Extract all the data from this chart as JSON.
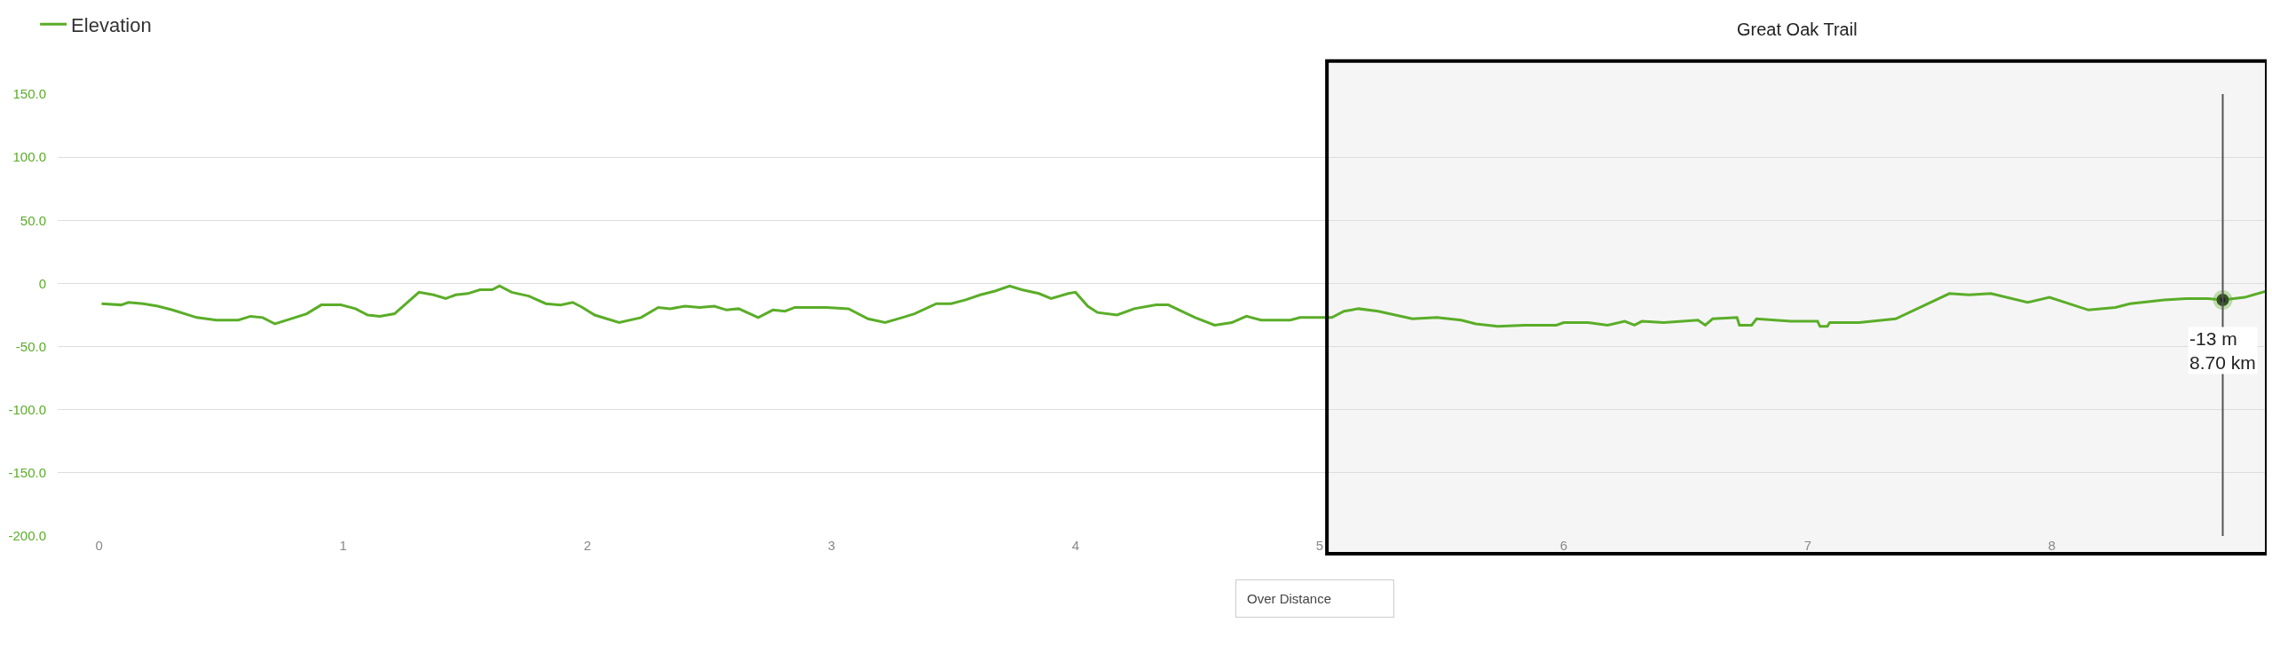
{
  "chart_data": {
    "type": "line",
    "series": [
      {
        "name": "Elevation",
        "color": "#5aad28",
        "x": [
          0.01,
          0.09,
          0.12,
          0.18,
          0.24,
          0.3,
          0.4,
          0.48,
          0.57,
          0.62,
          0.67,
          0.72,
          0.77,
          0.85,
          0.91,
          0.99,
          1.05,
          1.1,
          1.15,
          1.21,
          1.31,
          1.37,
          1.42,
          1.46,
          1.51,
          1.56,
          1.61,
          1.64,
          1.69,
          1.76,
          1.83,
          1.89,
          1.94,
          1.98,
          2.03,
          2.13,
          2.22,
          2.29,
          2.34,
          2.4,
          2.46,
          2.52,
          2.57,
          2.62,
          2.7,
          2.76,
          2.81,
          2.85,
          2.98,
          3.07,
          3.15,
          3.22,
          3.29,
          3.34,
          3.43,
          3.49,
          3.55,
          3.61,
          3.67,
          3.73,
          3.78,
          3.85,
          3.9,
          3.97,
          4.0,
          4.05,
          4.09,
          4.17,
          4.24,
          4.33,
          4.38,
          4.49,
          4.57,
          4.64,
          4.7,
          4.76,
          4.88,
          4.92,
          5.05,
          5.1,
          5.16,
          5.24,
          5.38,
          5.48,
          5.58,
          5.64,
          5.73,
          5.84,
          5.97,
          6.0,
          6.1,
          6.18,
          6.25,
          6.29,
          6.32,
          6.41,
          6.55,
          6.58,
          6.61,
          6.71,
          6.72,
          6.77,
          6.79,
          6.93,
          7.04,
          7.05,
          7.08,
          7.09,
          7.21,
          7.36,
          7.46,
          7.58,
          7.66,
          7.75,
          7.9,
          7.99,
          8.15,
          8.26,
          8.32,
          8.46,
          8.55,
          8.64,
          8.7,
          8.79,
          8.88
        ],
        "values": [
          -16,
          -17,
          -15,
          -16,
          -18,
          -21,
          -27,
          -29,
          -29,
          -26,
          -27,
          -32,
          -29,
          -24,
          -17,
          -17,
          -20,
          -25,
          -26,
          -24,
          -7,
          -9,
          -12,
          -9,
          -8,
          -5,
          -5,
          -2,
          -7,
          -10,
          -16,
          -17,
          -15,
          -19,
          -25,
          -31,
          -27,
          -19,
          -20,
          -18,
          -19,
          -18,
          -21,
          -20,
          -27,
          -21,
          -22,
          -19,
          -19,
          -20,
          -28,
          -31,
          -27,
          -24,
          -16,
          -16,
          -13,
          -9,
          -6,
          -2,
          -5,
          -8,
          -12,
          -8,
          -7,
          -18,
          -23,
          -25,
          -20,
          -17,
          -17,
          -27,
          -33,
          -31,
          -26,
          -29,
          -29,
          -27,
          -27,
          -22,
          -20,
          -22,
          -28,
          -27,
          -29,
          -32,
          -34,
          -33,
          -33,
          -31,
          -31,
          -33,
          -30,
          -33,
          -30,
          -31,
          -29,
          -33,
          -28,
          -27,
          -33,
          -33,
          -28,
          -30,
          -30,
          -34,
          -34,
          -31,
          -31,
          -28,
          -19,
          -8,
          -9,
          -8,
          -15,
          -11,
          -21,
          -19,
          -16,
          -13,
          -12,
          -12,
          -13,
          -11,
          -6
        ]
      }
    ],
    "xlim": [
      -0.17,
      8.88
    ],
    "ylim": [
      -200,
      150
    ],
    "xticks": [
      0,
      1,
      2,
      3,
      4,
      5,
      6,
      7,
      8
    ],
    "yticks": [
      {
        "value": 150,
        "label": "150.0"
      },
      {
        "value": 100,
        "label": "100.0"
      },
      {
        "value": 50,
        "label": "50.0"
      },
      0,
      {
        "value": -50,
        "label": "-50.0"
      },
      {
        "value": -100,
        "label": "-100.0"
      },
      {
        "value": -150,
        "label": "-150.0"
      },
      {
        "value": -200,
        "label": "-200.0"
      }
    ],
    "grid": "y",
    "legend": "top left",
    "bands": [
      {
        "axis": "x",
        "from": 5.03,
        "to": 8.88,
        "label": "Great Oak Trail",
        "color": "#000000"
      }
    ],
    "ref_lines": [
      {
        "axis": "x",
        "value": 8.7,
        "color": "#555555"
      }
    ],
    "annotations": [
      {
        "text": "-13 m\n8.70 km",
        "x": 8.7,
        "y": -13
      },
      "Over Distance"
    ]
  }
}
